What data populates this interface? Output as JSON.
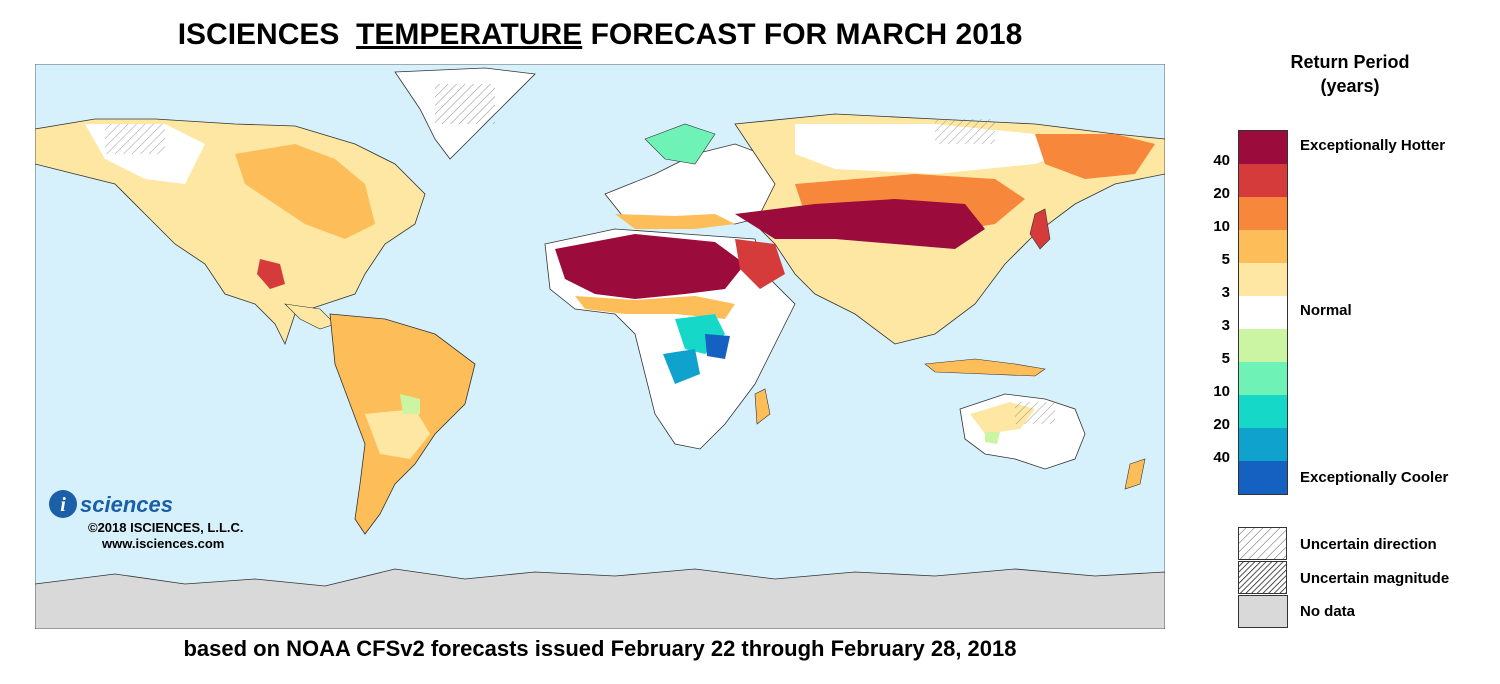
{
  "title": {
    "part1": "ISCIENCES",
    "part2": "TEMPERATURE",
    "part3": "FORECAST FOR MARCH 2018"
  },
  "subtitle": "based on NOAA CFSv2 forecasts issued February 22 through February 28, 2018",
  "legend": {
    "title_line1": "Return Period",
    "title_line2": "(years)",
    "ticks": [
      "40",
      "20",
      "10",
      "5",
      "3",
      "3",
      "5",
      "10",
      "20",
      "40"
    ],
    "colors": [
      "#9b0b3c",
      "#d63b3b",
      "#f7873a",
      "#fdbe5a",
      "#fde7a3",
      "#ffffff",
      "#ccf5a3",
      "#6ef2b5",
      "#15d8c8",
      "#0ea2cc",
      "#1561c2"
    ],
    "categories": {
      "hot": "Exceptionally Hotter",
      "normal": "Normal",
      "cool": "Exceptionally Cooler"
    },
    "patterns": {
      "uncertain_direction": "Uncertain direction",
      "uncertain_magnitude": "Uncertain magnitude",
      "no_data": "No data"
    }
  },
  "logo": {
    "letter": "i",
    "word": "sciences",
    "copyright": "©2018 ISCIENCES, L.L.C.",
    "website": "www.isciences.com"
  },
  "colors": {
    "ocean": "#d6f1fb",
    "no_data": "#d9d9d9",
    "land_normal": "#ffffff",
    "logo_blue": "#1a5fa8"
  }
}
